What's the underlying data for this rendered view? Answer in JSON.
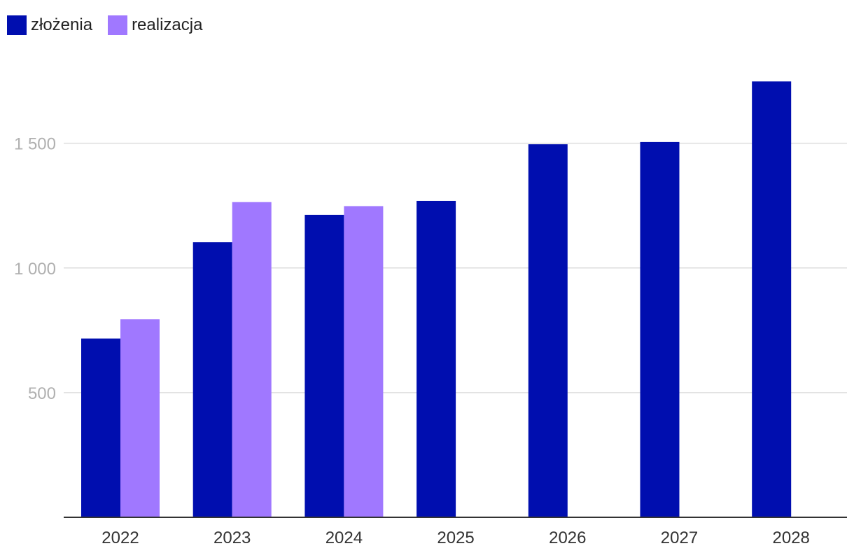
{
  "chart_data": {
    "type": "bar",
    "categories": [
      "2022",
      "2023",
      "2024",
      "2025",
      "2026",
      "2027",
      "2028"
    ],
    "series": [
      {
        "name": "złożenia",
        "color": "#000eaf",
        "values": [
          717,
          1103,
          1213,
          1269,
          1496,
          1505,
          1748
        ]
      },
      {
        "name": "realizacja",
        "color": "#a078ff",
        "values": [
          794,
          1264,
          1248,
          null,
          null,
          null,
          null
        ]
      }
    ],
    "y_ticks": [
      500,
      1000,
      1500
    ],
    "y_tick_labels": [
      "500",
      "1 000",
      "1 500"
    ],
    "ylim": [
      0,
      1850
    ],
    "grid": true,
    "legend_position": "top-left"
  }
}
